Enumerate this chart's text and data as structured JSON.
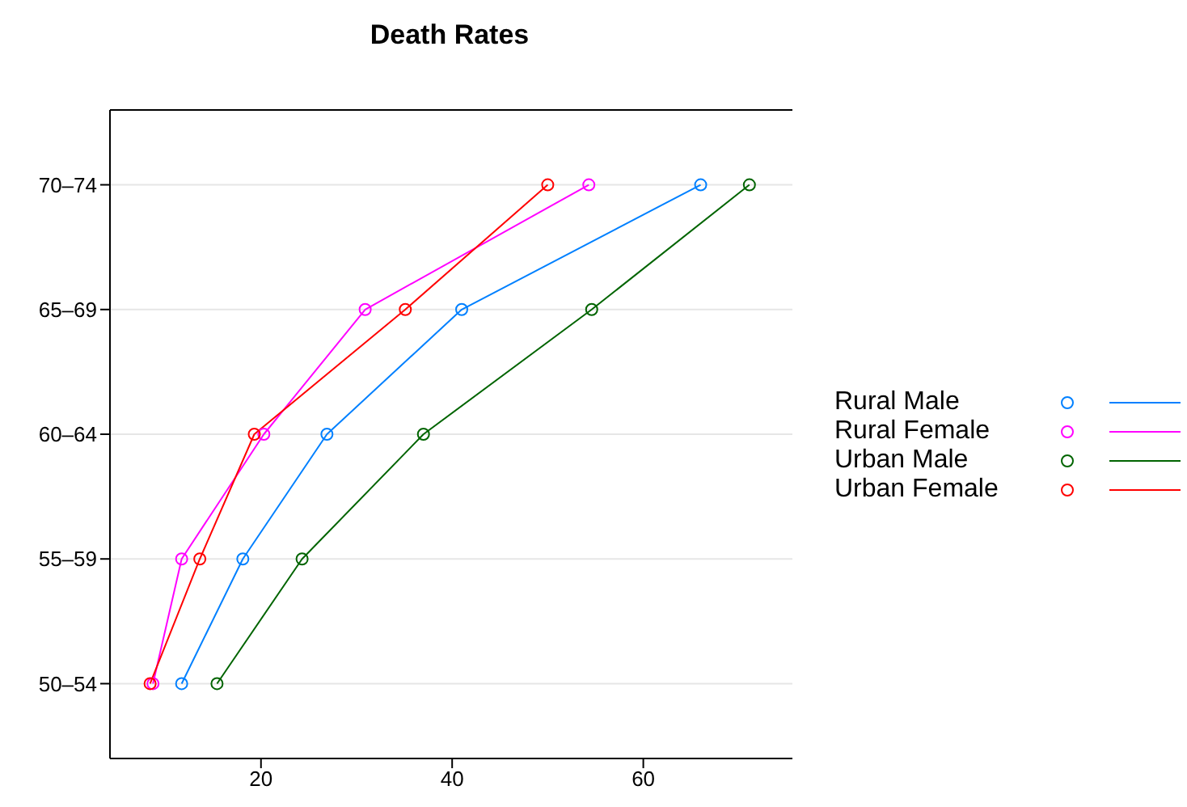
{
  "chart_data": {
    "type": "line",
    "title": "Death Rates",
    "orientation": "horizontal",
    "categories": [
      "70–74",
      "65–69",
      "60–64",
      "55–59",
      "50–54"
    ],
    "series": [
      {
        "name": "Rural Male",
        "color": "#0080ff",
        "values": [
          66.0,
          41.0,
          26.9,
          18.1,
          11.7
        ]
      },
      {
        "name": "Rural Female",
        "color": "#ff00ff",
        "values": [
          54.3,
          30.9,
          20.3,
          11.7,
          8.7
        ]
      },
      {
        "name": "Urban Male",
        "color": "#006400",
        "values": [
          71.1,
          54.6,
          37.0,
          24.3,
          15.4
        ]
      },
      {
        "name": "Urban Female",
        "color": "#ff0000",
        "values": [
          50.0,
          35.1,
          19.3,
          13.6,
          8.4
        ]
      }
    ],
    "xlim": [
      4.2,
      75.6
    ],
    "xticks": [
      20,
      40,
      60
    ],
    "grid": "y",
    "legend": "right",
    "marker": "circle",
    "line_style": "solid"
  }
}
